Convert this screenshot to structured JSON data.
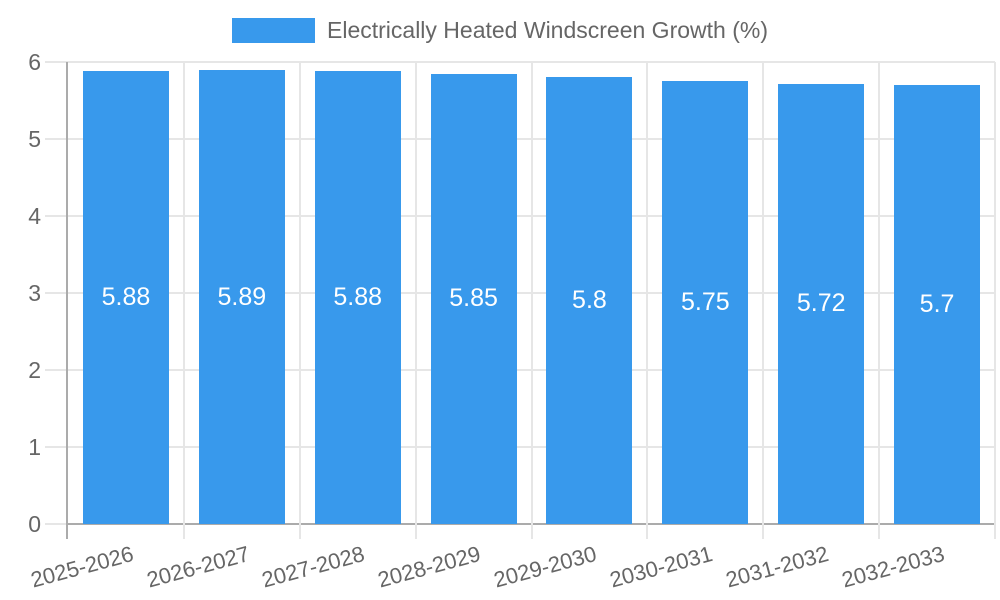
{
  "legend": {
    "label": "Electrically Heated Windscreen Growth (%)"
  },
  "colors": {
    "bar": "#3899EC",
    "bar_label": "#FFFFFF",
    "axis_text": "#666666",
    "grid_line": "#E6E6E6",
    "axis_line": "#ABABAB",
    "background": "#FFFFFF"
  },
  "chart_data": {
    "type": "bar",
    "title": "Electrically Heated Windscreen Growth (%)",
    "categories": [
      "2025-2026",
      "2026-2027",
      "2027-2028",
      "2028-2029",
      "2029-2030",
      "2030-2031",
      "2031-2032",
      "2032-2033"
    ],
    "series": [
      {
        "name": "Electrically Heated Windscreen Growth (%)",
        "values": [
          5.88,
          5.89,
          5.88,
          5.85,
          5.8,
          5.75,
          5.72,
          5.7
        ]
      }
    ],
    "value_labels": [
      "5.88",
      "5.89",
      "5.88",
      "5.85",
      "5.8",
      "5.75",
      "5.72",
      "5.7"
    ],
    "xlabel": "",
    "ylabel": "",
    "ylim": [
      0,
      6
    ],
    "yticks": [
      0,
      1,
      2,
      3,
      4,
      5,
      6
    ],
    "grid": true,
    "x_tick_rotation_deg": -15,
    "legend_position": "top-center"
  }
}
